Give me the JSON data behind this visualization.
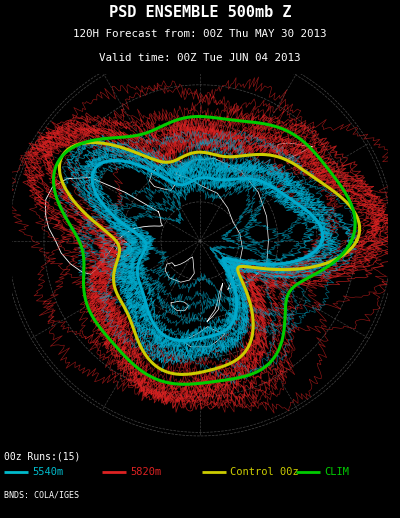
{
  "title_line1": "PSD ENSEMBLE 500mb Z",
  "title_line2": "120H Forecast from: 00Z Thu MAY 30 2013",
  "title_line3": "Valid time: 00Z Tue JUN 04 2013",
  "footer_left": "00z Runs:(15)",
  "footer_credit": "BNDS: COLA/IGES",
  "legend": [
    {
      "label": "5540m",
      "color": "#00bbcc"
    },
    {
      "label": "5820m",
      "color": "#dd2222"
    },
    {
      "label": "Control 00z",
      "color": "#cccc00"
    },
    {
      "label": "CLIM",
      "color": "#00cc00"
    }
  ],
  "bg_color": "#000000",
  "border_color": "#ffffff",
  "title_color": "#ffffff",
  "grid_color": "#555555",
  "coastline_color": "#ffffff",
  "ensemble_cyan_color": "#00aacc",
  "ensemble_red_color": "#dd2222",
  "control_color": "#cccc00",
  "clim_color": "#00cc00",
  "n_ensemble": 15,
  "figsize": [
    4.0,
    5.18
  ],
  "dpi": 100
}
